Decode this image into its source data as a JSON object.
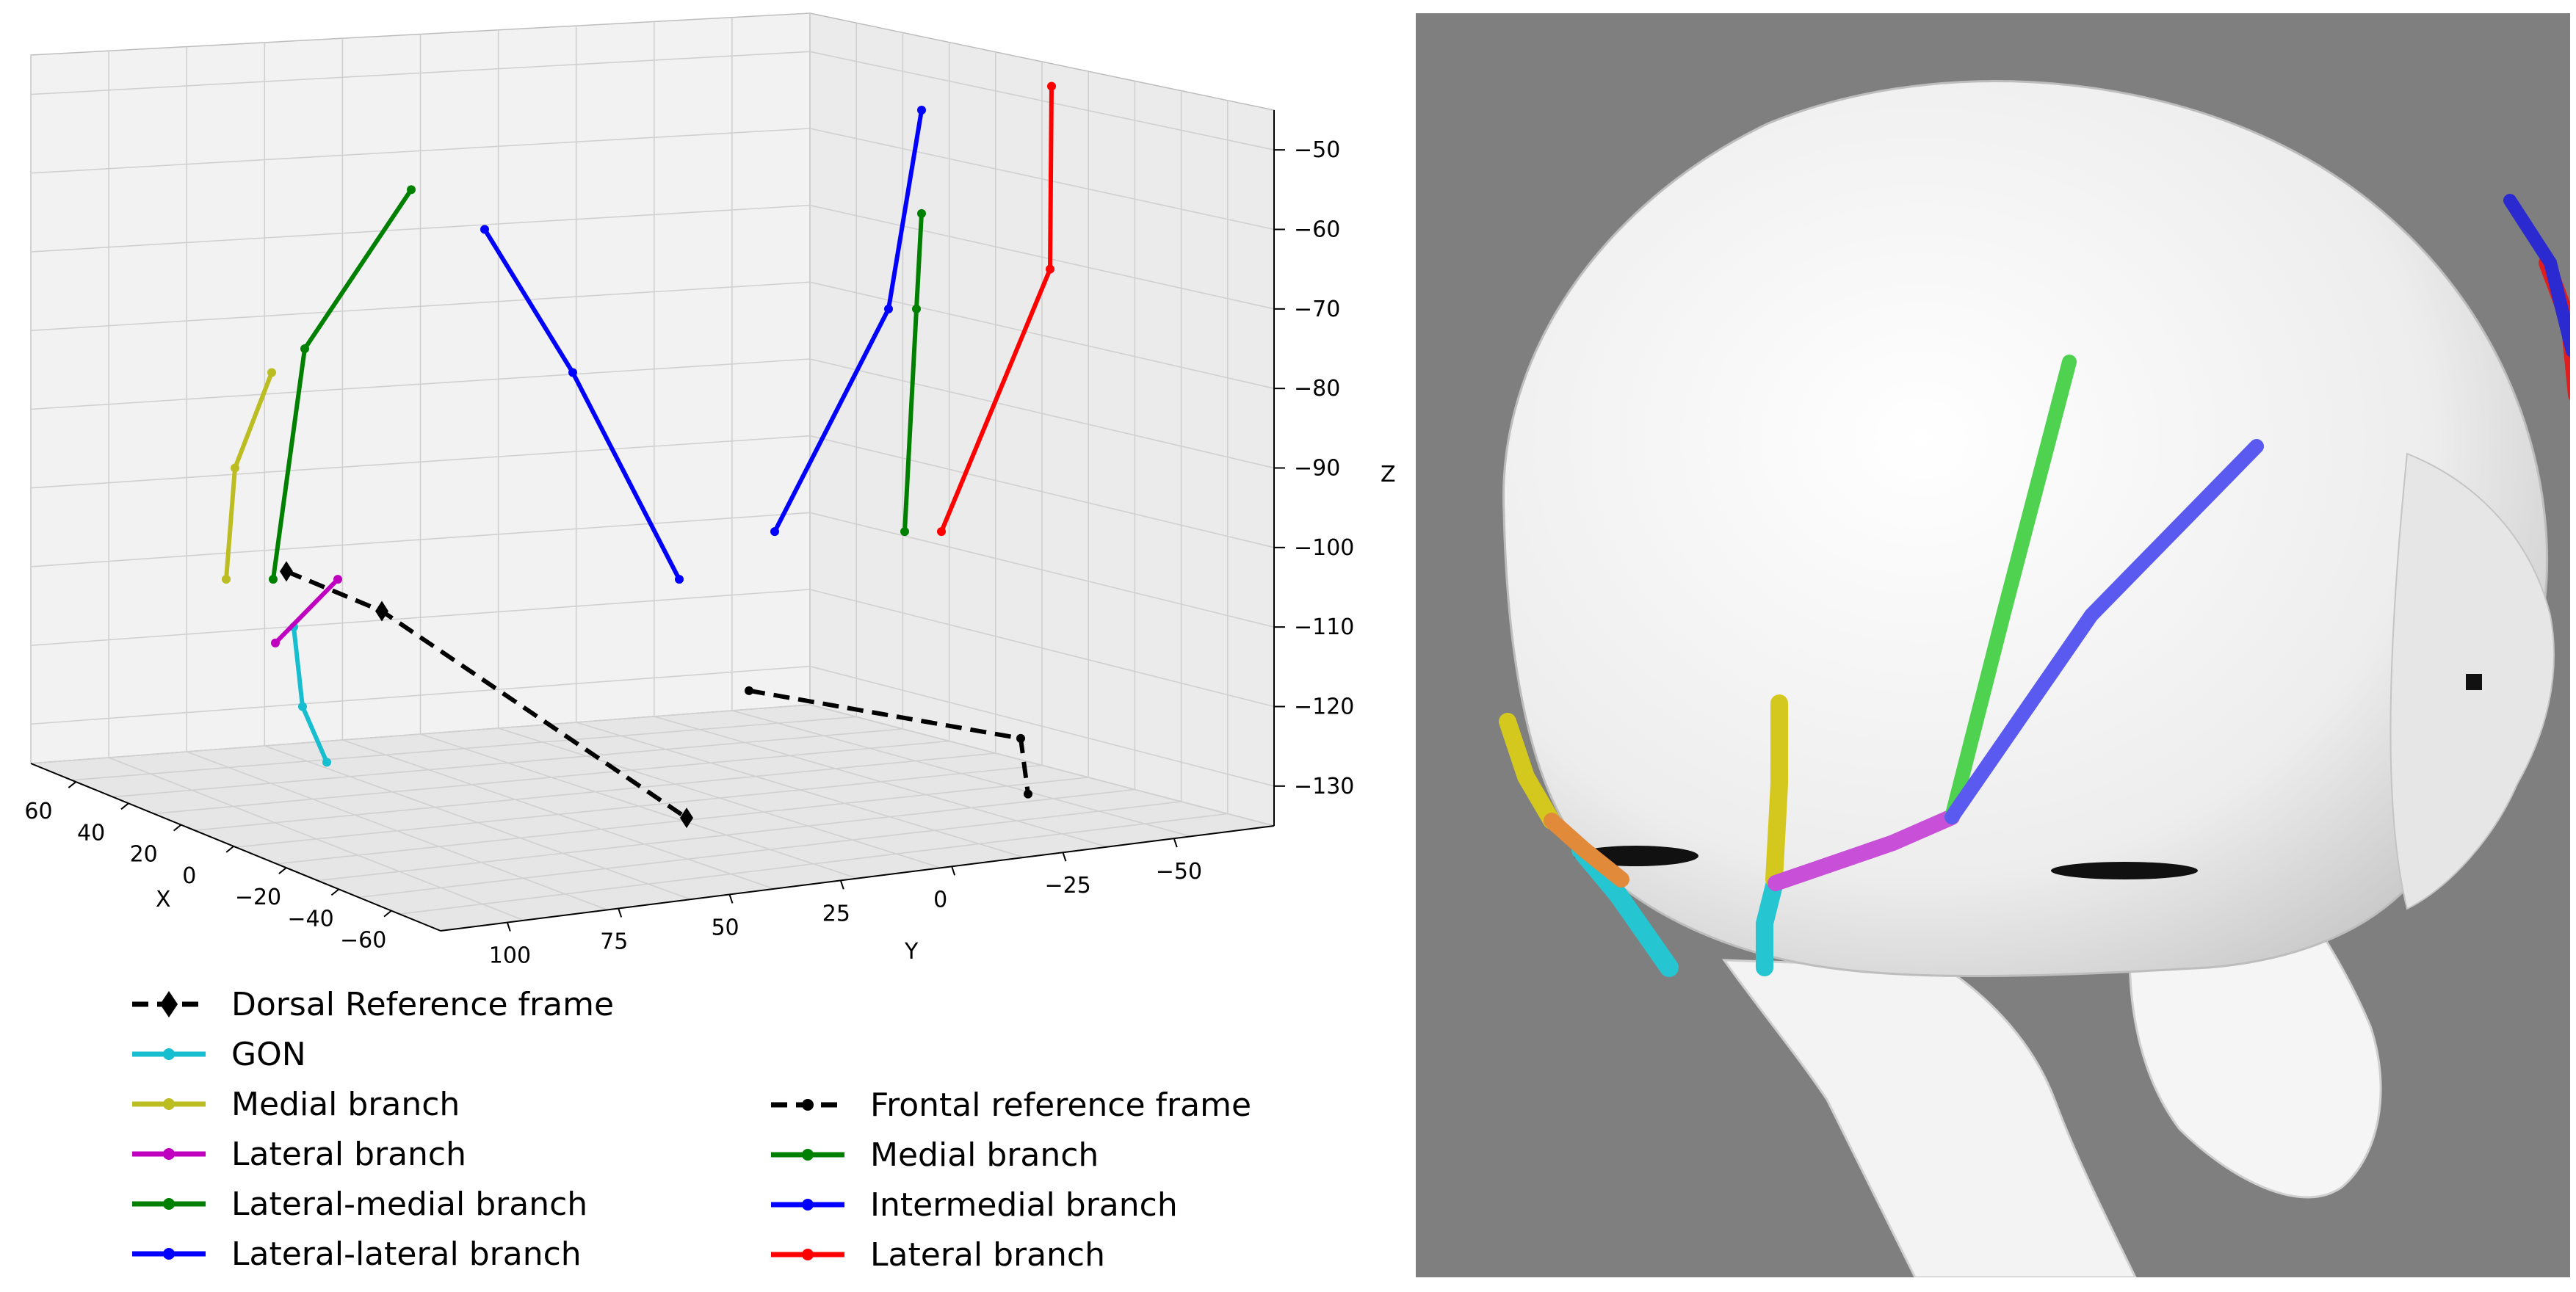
{
  "chart_data": {
    "type": "line3d",
    "title": "",
    "axes": {
      "x": {
        "label": "X",
        "ticks": [
          60,
          40,
          20,
          0,
          -20,
          -40,
          -60
        ]
      },
      "y": {
        "label": "Y",
        "ticks": [
          100,
          75,
          50,
          25,
          0,
          -25,
          -50
        ]
      },
      "z": {
        "label": "Z",
        "ticks": [
          -50,
          -60,
          -70,
          -80,
          -90,
          -100,
          -110,
          -120,
          -130
        ],
        "range": [
          -135,
          -45
        ]
      }
    },
    "grid": true,
    "series": [
      {
        "name": "Dorsal Reference frame",
        "group": "dorsal",
        "color": "#000000",
        "style": "dashed",
        "marker": "diamond",
        "points_z": [
          -103,
          -108,
          -134
        ]
      },
      {
        "name": "GON",
        "group": "dorsal",
        "color": "#17becf",
        "style": "solid",
        "marker": "plus",
        "points_z": [
          -110,
          -120,
          -127
        ]
      },
      {
        "name": "Medial branch",
        "group": "dorsal",
        "color": "#bcbd22",
        "style": "solid",
        "marker": "plus",
        "points_z": [
          -78,
          -90,
          -104
        ]
      },
      {
        "name": "Lateral branch",
        "group": "dorsal",
        "color": "#bf00bf",
        "style": "solid",
        "marker": "plus",
        "points_z": [
          -104,
          -112
        ]
      },
      {
        "name": "Lateral-medial branch",
        "group": "dorsal",
        "color": "#008000",
        "style": "solid",
        "marker": "plus",
        "points_z": [
          -55,
          -75,
          -104
        ]
      },
      {
        "name": "Lateral-lateral branch",
        "group": "dorsal",
        "color": "#0000ff",
        "style": "solid",
        "marker": "plus",
        "points_z": [
          -60,
          -78,
          -104
        ]
      },
      {
        "name": "Frontal reference frame",
        "group": "frontal",
        "color": "#000000",
        "style": "dashed",
        "marker": "dot",
        "points_z": [
          -118,
          -124,
          -131
        ]
      },
      {
        "name": "Medial branch",
        "group": "frontal",
        "color": "#008000",
        "style": "solid",
        "marker": "dot",
        "points_z": [
          -58,
          -70,
          -98
        ]
      },
      {
        "name": "Intermedial branch",
        "group": "frontal",
        "color": "#0000ff",
        "style": "solid",
        "marker": "dot",
        "points_z": [
          -45,
          -70,
          -98
        ]
      },
      {
        "name": "Lateral branch",
        "group": "frontal",
        "color": "#ff0000",
        "style": "solid",
        "marker": "dot",
        "points_z": [
          -42,
          -65,
          -98
        ]
      }
    ],
    "legend_placement": "bottom"
  },
  "render": {
    "background": "#7f7f7f",
    "nerve_colors": {
      "yellow": "#d4c81e",
      "cyan": "#25c6d2",
      "magenta": "#c84fd8",
      "green": "#4fd24f",
      "blue": "#5a5af0",
      "red": "#e01e1e"
    }
  }
}
